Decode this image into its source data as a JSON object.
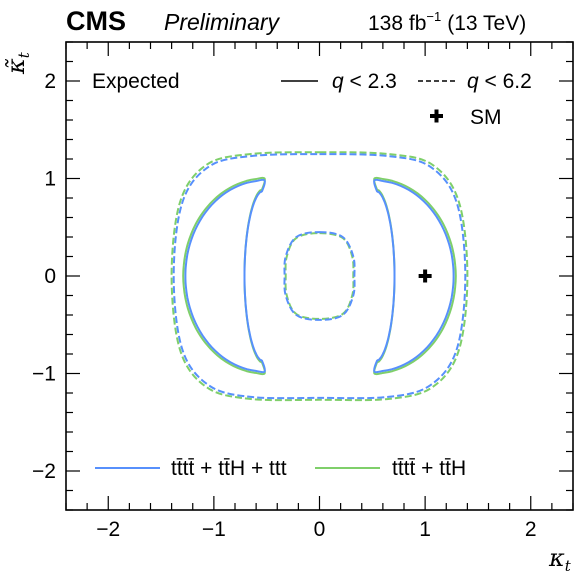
{
  "header": {
    "experiment": "CMS",
    "status": "Preliminary",
    "luminosity": "138 fb",
    "lumi_exponent": "−1",
    "energy": "(13 TeV)"
  },
  "chart_data": {
    "type": "contour",
    "xlabel": "κ",
    "xlabel_sub": "t",
    "ylabel": "κ̃",
    "ylabel_sub": "t",
    "xlim": [
      -2.4,
      2.4
    ],
    "ylim": [
      -2.4,
      2.4
    ],
    "xticks": [
      -2,
      -1,
      0,
      1,
      2
    ],
    "yticks": [
      -2,
      -1,
      0,
      1,
      2
    ],
    "xtick_labels": [
      "−2",
      "−1",
      "0",
      "1",
      "2"
    ],
    "ytick_labels": [
      "−2",
      "−1",
      "0",
      "1",
      "2"
    ],
    "annotation": "Expected",
    "style_legend": [
      {
        "label_var": "q",
        "label_rest": " < 2.3",
        "dash": "solid"
      },
      {
        "label_var": "q",
        "label_rest": " < 6.2",
        "dash": "dashed"
      }
    ],
    "sm_point": {
      "label": "SM",
      "x": 1.0,
      "y": 0.0
    },
    "series": [
      {
        "name": "tt̄tt̄ + tt̄H + ttt",
        "color": "#5790fc",
        "contours": [
          {
            "level": "q < 2.3",
            "dash": "solid",
            "shape": "crescent-right",
            "points": [
              [
                0.51,
                1.03
              ],
              [
                0.6,
                1.03
              ],
              [
                0.64,
                0.95
              ],
              [
                0.74,
                0.45
              ],
              [
                0.78,
                0.0
              ],
              [
                0.74,
                -0.45
              ],
              [
                0.64,
                -0.95
              ],
              [
                0.6,
                -1.03
              ],
              [
                0.51,
                -1.03
              ],
              [
                0.51,
                -0.92
              ],
              [
                0.59,
                -0.78
              ],
              [
                0.67,
                -0.55
              ],
              [
                0.69,
                -0.3
              ],
              [
                0.7,
                0.0
              ],
              [
                0.69,
                0.3
              ],
              [
                0.67,
                0.55
              ],
              [
                0.59,
                0.78
              ],
              [
                0.51,
                0.92
              ]
            ],
            "note": "right band"
          },
          {
            "level": "q < 2.3",
            "dash": "solid",
            "shape": "crescent-right-outer",
            "points": [
              [
                0.51,
                0.92
              ],
              [
                0.58,
                0.96
              ],
              [
                0.66,
                0.97
              ],
              [
                0.86,
                0.97
              ],
              [
                1.05,
                0.83
              ],
              [
                1.22,
                0.48
              ],
              [
                1.27,
                0.0
              ],
              [
                1.22,
                -0.48
              ],
              [
                1.05,
                -0.83
              ],
              [
                0.86,
                -0.97
              ],
              [
                0.66,
                -0.97
              ],
              [
                0.58,
                -0.96
              ],
              [
                0.51,
                -0.92
              ]
            ]
          },
          {
            "level": "q < 2.3",
            "dash": "solid",
            "shape": "crescent-left",
            "points": [
              [
                -0.51,
                0.92
              ],
              [
                -0.58,
                0.96
              ],
              [
                -0.66,
                0.97
              ],
              [
                -0.86,
                0.97
              ],
              [
                -1.05,
                0.83
              ],
              [
                -1.22,
                0.48
              ],
              [
                -1.27,
                0.0
              ],
              [
                -1.22,
                -0.48
              ],
              [
                -1.05,
                -0.83
              ],
              [
                -0.86,
                -0.97
              ],
              [
                -0.66,
                -0.97
              ],
              [
                -0.58,
                -0.96
              ],
              [
                -0.51,
                -0.92
              ]
            ]
          },
          {
            "level": "q < 6.2",
            "dash": "dashed",
            "shape": "outer-ring",
            "points": [
              [
                0.0,
                1.25
              ],
              [
                0.65,
                1.23
              ],
              [
                1.05,
                1.12
              ],
              [
                1.3,
                0.75
              ],
              [
                1.38,
                0.0
              ],
              [
                1.3,
                -0.75
              ],
              [
                1.05,
                -1.12
              ],
              [
                0.65,
                -1.24
              ],
              [
                0.0,
                -1.25
              ],
              [
                -0.65,
                -1.24
              ],
              [
                -1.05,
                -1.12
              ],
              [
                -1.3,
                -0.75
              ],
              [
                -1.38,
                0.0
              ],
              [
                -1.3,
                0.75
              ],
              [
                -1.05,
                1.12
              ],
              [
                -0.65,
                1.23
              ]
            ]
          },
          {
            "level": "q < 6.2",
            "dash": "dashed",
            "shape": "inner-ring",
            "points": [
              [
                0.0,
                0.45
              ],
              [
                0.22,
                0.4
              ],
              [
                0.32,
                0.2
              ],
              [
                0.33,
                0.0
              ],
              [
                0.32,
                -0.2
              ],
              [
                0.22,
                -0.4
              ],
              [
                0.0,
                -0.45
              ],
              [
                -0.22,
                -0.4
              ],
              [
                -0.32,
                -0.2
              ],
              [
                -0.33,
                0.0
              ],
              [
                -0.32,
                0.2
              ],
              [
                -0.22,
                0.4
              ]
            ]
          }
        ]
      },
      {
        "name": "tt̄tt̄ + tt̄H",
        "color": "#7fcf6a",
        "contours": [
          {
            "level": "q < 2.3",
            "dash": "solid",
            "shape": "crescent-right",
            "points": [
              [
                0.51,
                0.93
              ],
              [
                0.58,
                0.98
              ],
              [
                0.66,
                0.99
              ],
              [
                0.87,
                0.99
              ],
              [
                1.07,
                0.85
              ],
              [
                1.24,
                0.49
              ],
              [
                1.29,
                0.0
              ],
              [
                1.24,
                -0.49
              ],
              [
                1.07,
                -0.85
              ],
              [
                0.87,
                -0.99
              ],
              [
                0.66,
                -0.99
              ],
              [
                0.58,
                -0.98
              ],
              [
                0.51,
                -0.93
              ]
            ]
          },
          {
            "level": "q < 2.3",
            "dash": "solid",
            "shape": "crescent-left",
            "points": [
              [
                -0.51,
                0.93
              ],
              [
                -0.58,
                0.98
              ],
              [
                -0.66,
                0.99
              ],
              [
                -0.87,
                0.99
              ],
              [
                -1.07,
                0.85
              ],
              [
                -1.24,
                0.49
              ],
              [
                -1.29,
                0.0
              ],
              [
                -1.24,
                -0.49
              ],
              [
                -1.07,
                -0.85
              ],
              [
                -0.87,
                -0.99
              ],
              [
                -0.66,
                -0.99
              ],
              [
                -0.58,
                -0.98
              ],
              [
                -0.51,
                -0.93
              ]
            ]
          },
          {
            "level": "q < 6.2",
            "dash": "dashed",
            "shape": "outer-ring",
            "points": [
              [
                0.0,
                1.27
              ],
              [
                0.66,
                1.25
              ],
              [
                1.07,
                1.14
              ],
              [
                1.32,
                0.76
              ],
              [
                1.4,
                0.0
              ],
              [
                1.32,
                -0.76
              ],
              [
                1.07,
                -1.14
              ],
              [
                0.66,
                -1.26
              ],
              [
                0.0,
                -1.27
              ],
              [
                -0.66,
                -1.26
              ],
              [
                -1.07,
                -1.14
              ],
              [
                -1.32,
                -0.76
              ],
              [
                -1.4,
                0.0
              ],
              [
                -1.32,
                0.76
              ],
              [
                -1.07,
                1.14
              ],
              [
                -0.66,
                1.25
              ]
            ]
          },
          {
            "level": "q < 6.2",
            "dash": "dashed",
            "shape": "inner-ring",
            "points": [
              [
                0.0,
                0.44
              ],
              [
                0.22,
                0.39
              ],
              [
                0.31,
                0.2
              ],
              [
                0.32,
                0.0
              ],
              [
                0.31,
                -0.2
              ],
              [
                0.22,
                -0.39
              ],
              [
                0.0,
                -0.44
              ],
              [
                -0.22,
                -0.39
              ],
              [
                -0.31,
                -0.2
              ],
              [
                -0.32,
                0.0
              ],
              [
                -0.31,
                0.2
              ],
              [
                -0.22,
                0.39
              ]
            ]
          }
        ]
      }
    ],
    "legend": [
      {
        "label": "tt̄tt̄ + tt̄H + ttt",
        "color": "#5790fc",
        "position": "bottom-left"
      },
      {
        "label": "tt̄tt̄ + tt̄H",
        "color": "#7fcf6a",
        "position": "bottom-right"
      }
    ]
  }
}
